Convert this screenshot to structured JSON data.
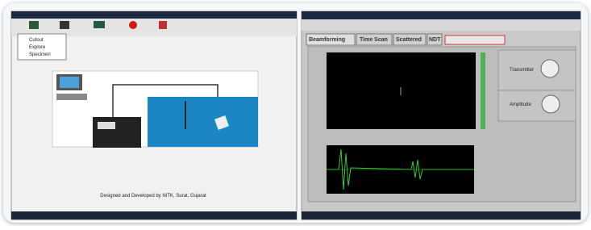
{
  "left_window": {
    "menu": [
      "Cutout",
      "Explore",
      "Specimen"
    ],
    "footer": "Designed and Developed by NITK, Surat, Gujarat"
  },
  "right_window": {
    "tabs": [
      "Beamforming",
      "Time Scan",
      "Scattered",
      "NDT"
    ],
    "knobs": [
      "Transmitter",
      "Amplitude"
    ]
  }
}
